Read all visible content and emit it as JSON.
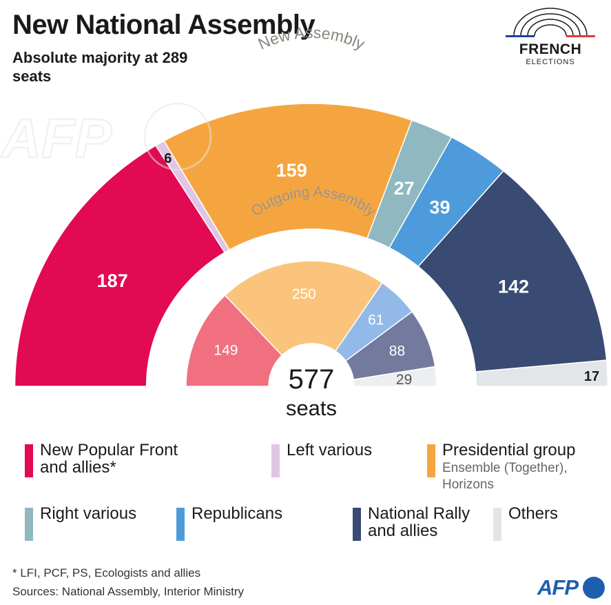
{
  "title": "New National Assembly",
  "subtitle": "Absolute majority at 289 seats",
  "logo": {
    "word": "FRENCH",
    "sub": "ELECTIONS",
    "watermark": "AFP",
    "corner": "AFP"
  },
  "colors": {
    "blue_accent": "#1d5fad",
    "flag_blue": "#1f3f9a",
    "flag_red": "#e23a3a"
  },
  "chart_data": {
    "type": "pie",
    "layout": "nested-semicircle",
    "total_label_value": "577",
    "total_label_unit": "seats",
    "outer": {
      "label": "New Assembly",
      "segments": [
        {
          "name": "New Popular Front and allies*",
          "value": 187,
          "color": "#e20a52",
          "text_color": "#ffffff"
        },
        {
          "name": "Left various",
          "value": 6,
          "color": "#e0c6e4",
          "text_color": "#1a1a1a"
        },
        {
          "name": "Presidential group",
          "value": 159,
          "color": "#f5a540",
          "text_color": "#ffffff"
        },
        {
          "name": "Right various",
          "value": 27,
          "color": "#8fb8c0",
          "text_color": "#ffffff"
        },
        {
          "name": "Republicans",
          "value": 39,
          "color": "#4e9bdb",
          "text_color": "#ffffff"
        },
        {
          "name": "National Rally and allies",
          "value": 142,
          "color": "#394a73",
          "text_color": "#ffffff"
        },
        {
          "name": "Others",
          "value": 17,
          "color": "#e3e6e9",
          "text_color": "#1a1a1a"
        }
      ]
    },
    "inner": {
      "label": "Outgoing Assembly",
      "segments": [
        {
          "name": "New Popular Front and allies*",
          "value": 149,
          "color": "#f07080",
          "text_color": "#ffffff"
        },
        {
          "name": "Presidential group",
          "value": 250,
          "color": "#fbc47c",
          "text_color": "#ffffff"
        },
        {
          "name": "Republicans",
          "value": 61,
          "color": "#92b9e8",
          "text_color": "#ffffff"
        },
        {
          "name": "National Rally and allies",
          "value": 88,
          "color": "#737a9e",
          "text_color": "#ffffff"
        },
        {
          "name": "Others",
          "value": 29,
          "color": "#eceef0",
          "text_color": "#555555"
        }
      ]
    }
  },
  "legend": [
    {
      "label": "New Popular Front and allies*",
      "color": "#e20a52"
    },
    {
      "label": "Left various",
      "color": "#e0c6e4"
    },
    {
      "label": "Presidential group",
      "sub": "Ensemble (Together), Horizons",
      "color": "#f5a540"
    },
    {
      "label": "Right various",
      "color": "#8fb8c0"
    },
    {
      "label": "Republicans",
      "color": "#4e9bdb"
    },
    {
      "label": "National Rally and allies",
      "color": "#394a73"
    },
    {
      "label": "Others",
      "color": "#e3e6e9"
    }
  ],
  "footnote": "* LFI, PCF, PS, Ecologists and allies",
  "sources": "Sources: National Assembly, Interior Ministry"
}
